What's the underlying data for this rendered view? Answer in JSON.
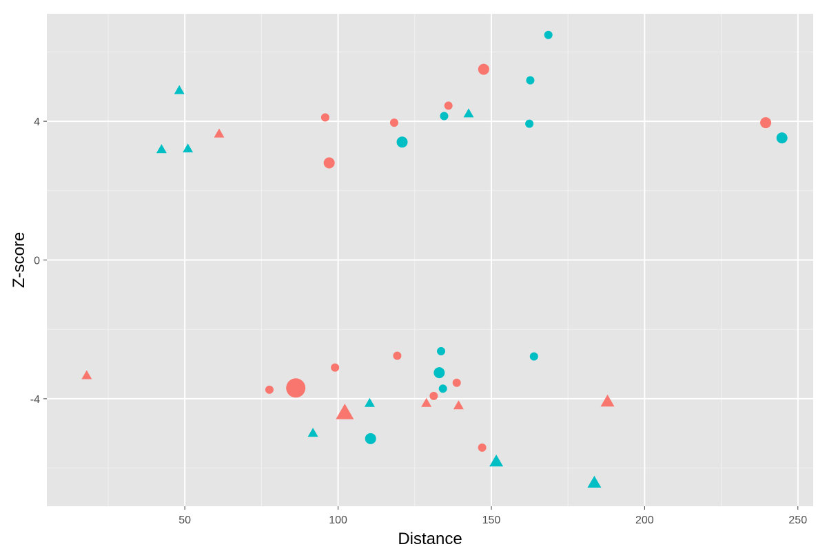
{
  "chart_data": {
    "type": "scatter",
    "title": "",
    "xlabel": "Distance",
    "ylabel": "Z-score",
    "xlim": [
      5,
      255
    ],
    "ylim": [
      -7.1,
      7.1
    ],
    "x_ticks": [
      50,
      100,
      150,
      200,
      250
    ],
    "y_ticks": [
      -4,
      0,
      4
    ],
    "grid": true,
    "legend": "none",
    "colors": {
      "salmon": "#F8766D",
      "teal": "#00BFC4",
      "panel": "#E5E5E5",
      "grid": "#FFFFFF"
    },
    "points": [
      {
        "x": 18.0,
        "y": -3.35,
        "shape": "triangle",
        "color": "salmon",
        "size": 1
      },
      {
        "x": 42.4,
        "y": 3.17,
        "shape": "triangle",
        "color": "teal",
        "size": 1
      },
      {
        "x": 48.2,
        "y": 4.87,
        "shape": "triangle",
        "color": "teal",
        "size": 1
      },
      {
        "x": 51.0,
        "y": 3.19,
        "shape": "triangle",
        "color": "teal",
        "size": 1
      },
      {
        "x": 61.2,
        "y": 3.62,
        "shape": "triangle",
        "color": "salmon",
        "size": 1
      },
      {
        "x": 77.6,
        "y": -3.74,
        "shape": "circle",
        "color": "salmon",
        "size": 1
      },
      {
        "x": 86.2,
        "y": -3.69,
        "shape": "circle",
        "color": "salmon",
        "size": 3
      },
      {
        "x": 91.8,
        "y": -5.01,
        "shape": "triangle",
        "color": "teal",
        "size": 1
      },
      {
        "x": 95.8,
        "y": 4.11,
        "shape": "circle",
        "color": "salmon",
        "size": 1
      },
      {
        "x": 97.1,
        "y": 2.8,
        "shape": "circle",
        "color": "salmon",
        "size": 2
      },
      {
        "x": 99.0,
        "y": -3.1,
        "shape": "circle",
        "color": "salmon",
        "size": 1
      },
      {
        "x": 102.2,
        "y": -4.44,
        "shape": "triangle",
        "color": "salmon",
        "size": 3
      },
      {
        "x": 110.3,
        "y": -4.15,
        "shape": "triangle",
        "color": "teal",
        "size": 1
      },
      {
        "x": 110.6,
        "y": -5.15,
        "shape": "circle",
        "color": "teal",
        "size": 2
      },
      {
        "x": 118.3,
        "y": 3.96,
        "shape": "circle",
        "color": "salmon",
        "size": 1
      },
      {
        "x": 119.3,
        "y": -2.76,
        "shape": "circle",
        "color": "salmon",
        "size": 1
      },
      {
        "x": 120.9,
        "y": 3.4,
        "shape": "circle",
        "color": "teal",
        "size": 2
      },
      {
        "x": 128.8,
        "y": -4.15,
        "shape": "triangle",
        "color": "salmon",
        "size": 1
      },
      {
        "x": 131.2,
        "y": -3.92,
        "shape": "circle",
        "color": "salmon",
        "size": 1
      },
      {
        "x": 133.0,
        "y": -3.25,
        "shape": "circle",
        "color": "teal",
        "size": 2
      },
      {
        "x": 133.6,
        "y": -2.63,
        "shape": "circle",
        "color": "teal",
        "size": 1
      },
      {
        "x": 134.2,
        "y": -3.71,
        "shape": "circle",
        "color": "teal",
        "size": 1
      },
      {
        "x": 134.6,
        "y": 4.15,
        "shape": "circle",
        "color": "teal",
        "size": 1
      },
      {
        "x": 136.0,
        "y": 4.45,
        "shape": "circle",
        "color": "salmon",
        "size": 1
      },
      {
        "x": 138.7,
        "y": -3.54,
        "shape": "circle",
        "color": "salmon",
        "size": 1
      },
      {
        "x": 139.3,
        "y": -4.22,
        "shape": "triangle",
        "color": "salmon",
        "size": 1
      },
      {
        "x": 142.6,
        "y": 4.2,
        "shape": "triangle",
        "color": "teal",
        "size": 1
      },
      {
        "x": 147.0,
        "y": -5.41,
        "shape": "circle",
        "color": "salmon",
        "size": 1
      },
      {
        "x": 147.5,
        "y": 5.5,
        "shape": "circle",
        "color": "salmon",
        "size": 2
      },
      {
        "x": 151.6,
        "y": -5.84,
        "shape": "triangle",
        "color": "teal",
        "size": 2
      },
      {
        "x": 162.4,
        "y": 3.93,
        "shape": "circle",
        "color": "teal",
        "size": 1
      },
      {
        "x": 162.7,
        "y": 5.18,
        "shape": "circle",
        "color": "teal",
        "size": 1
      },
      {
        "x": 163.9,
        "y": -2.78,
        "shape": "circle",
        "color": "teal",
        "size": 1
      },
      {
        "x": 168.6,
        "y": 6.49,
        "shape": "circle",
        "color": "teal",
        "size": 1
      },
      {
        "x": 183.6,
        "y": -6.45,
        "shape": "triangle",
        "color": "teal",
        "size": 2
      },
      {
        "x": 187.9,
        "y": -4.11,
        "shape": "triangle",
        "color": "salmon",
        "size": 2
      },
      {
        "x": 239.5,
        "y": 3.96,
        "shape": "circle",
        "color": "salmon",
        "size": 2
      },
      {
        "x": 244.8,
        "y": 3.52,
        "shape": "circle",
        "color": "teal",
        "size": 2
      }
    ]
  }
}
